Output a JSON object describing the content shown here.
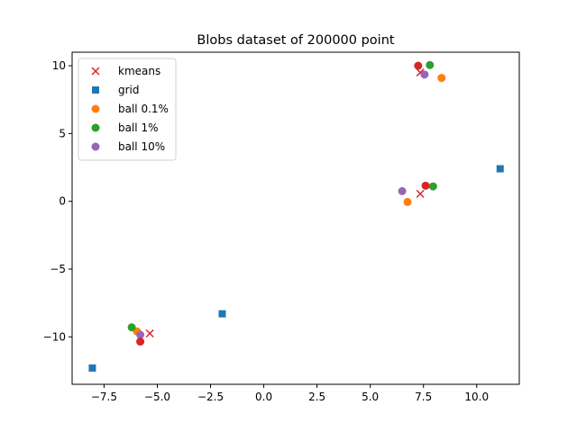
{
  "chart_data": {
    "type": "scatter",
    "title": "Blobs dataset of 200000 point",
    "xlabel": "",
    "ylabel": "",
    "xlim": [
      -9.0,
      12.0
    ],
    "ylim": [
      -13.5,
      11.0
    ],
    "xticks": [
      -7.5,
      -5.0,
      -2.5,
      0.0,
      2.5,
      5.0,
      7.5,
      10.0
    ],
    "xtick_labels": [
      "−7.5",
      "−5.0",
      "−2.5",
      "0.0",
      "2.5",
      "5.0",
      "7.5",
      "10.0"
    ],
    "yticks": [
      10,
      5,
      0,
      -5,
      -10
    ],
    "ytick_labels": [
      "10",
      "5",
      "0",
      "−5",
      "−10"
    ],
    "grid": false,
    "legend_position": "top-left",
    "series": [
      {
        "name": "kmeans",
        "marker": "x",
        "color": "#d62728",
        "points": [
          [
            7.35,
            9.5
          ],
          [
            7.35,
            0.55
          ],
          [
            -5.35,
            -9.75
          ]
        ]
      },
      {
        "name": "grid",
        "marker": "square",
        "color": "#1f77b4",
        "points": [
          [
            11.1,
            2.4
          ],
          [
            -1.95,
            -8.3
          ],
          [
            -8.05,
            -12.3
          ]
        ]
      },
      {
        "name": "ball 0.1%",
        "marker": "circle",
        "color": "#ff7f0e",
        "points": [
          [
            8.35,
            9.1
          ],
          [
            6.75,
            -0.05
          ],
          [
            -5.95,
            -9.6
          ]
        ]
      },
      {
        "name": "ball 1%",
        "marker": "circle",
        "color": "#2ca02c",
        "points": [
          [
            7.8,
            10.05
          ],
          [
            7.95,
            1.1
          ],
          [
            -6.2,
            -9.3
          ]
        ]
      },
      {
        "name": "ball 10%",
        "marker": "circle",
        "color": "#9467bd",
        "points": [
          [
            7.55,
            9.35
          ],
          [
            6.5,
            0.75
          ],
          [
            -5.8,
            -9.85
          ]
        ]
      },
      {
        "marker": "circle",
        "color": "#d62728",
        "points": [
          [
            7.25,
            10.0
          ],
          [
            7.6,
            1.15
          ],
          [
            -5.8,
            -10.35
          ]
        ]
      }
    ]
  }
}
